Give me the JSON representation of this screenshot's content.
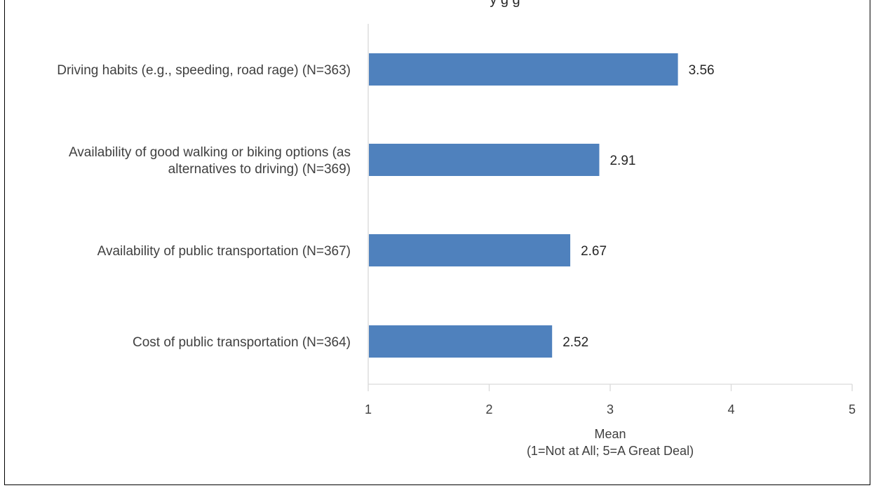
{
  "chart_data": {
    "type": "bar",
    "orientation": "horizontal",
    "title": "",
    "title_visible_fragment": "y  g  g",
    "categories": [
      [
        "Driving habits (e.g., speeding, road rage) (N=363)"
      ],
      [
        "Availability of good walking or biking options (as",
        "alternatives to driving) (N=369)"
      ],
      [
        "Availability of public transportation (N=367)"
      ],
      [
        "Cost of public transportation (N=364)"
      ]
    ],
    "values": [
      3.56,
      2.91,
      2.67,
      2.52
    ],
    "value_labels": [
      "3.56",
      "2.91",
      "2.67",
      "2.52"
    ],
    "xlim": [
      1,
      5
    ],
    "x_ticks": [
      "1",
      "2",
      "3",
      "4",
      "5"
    ],
    "xlabel": [
      "Mean",
      "(1=Not at All; 5=A Great Deal)"
    ],
    "ylabel": "",
    "grid": false,
    "legend": "none",
    "colors": {
      "bar": "#4F81BD",
      "axis": "#D9D9D9",
      "text": "#404040"
    }
  }
}
